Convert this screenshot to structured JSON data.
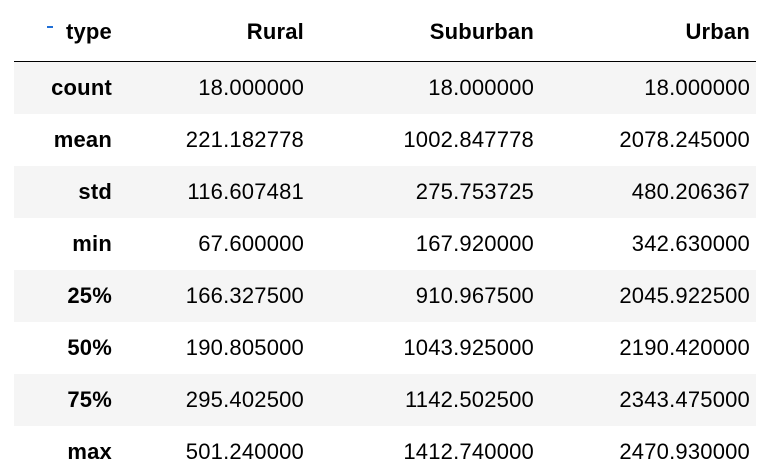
{
  "table": {
    "index_name": "type",
    "columns": [
      "Rural",
      "Suburban",
      "Urban"
    ],
    "rows": [
      {
        "label": "count",
        "values": [
          "18.000000",
          "18.000000",
          "18.000000"
        ]
      },
      {
        "label": "mean",
        "values": [
          "221.182778",
          "1002.847778",
          "2078.245000"
        ]
      },
      {
        "label": "std",
        "values": [
          "116.607481",
          "275.753725",
          "480.206367"
        ]
      },
      {
        "label": "min",
        "values": [
          "67.600000",
          "167.920000",
          "342.630000"
        ]
      },
      {
        "label": "25%",
        "values": [
          "166.327500",
          "910.967500",
          "2045.922500"
        ]
      },
      {
        "label": "50%",
        "values": [
          "190.805000",
          "1043.925000",
          "2190.420000"
        ]
      },
      {
        "label": "75%",
        "values": [
          "295.402500",
          "1142.502500",
          "2343.475000"
        ]
      },
      {
        "label": "max",
        "values": [
          "501.240000",
          "1412.740000",
          "2470.930000"
        ]
      }
    ]
  }
}
